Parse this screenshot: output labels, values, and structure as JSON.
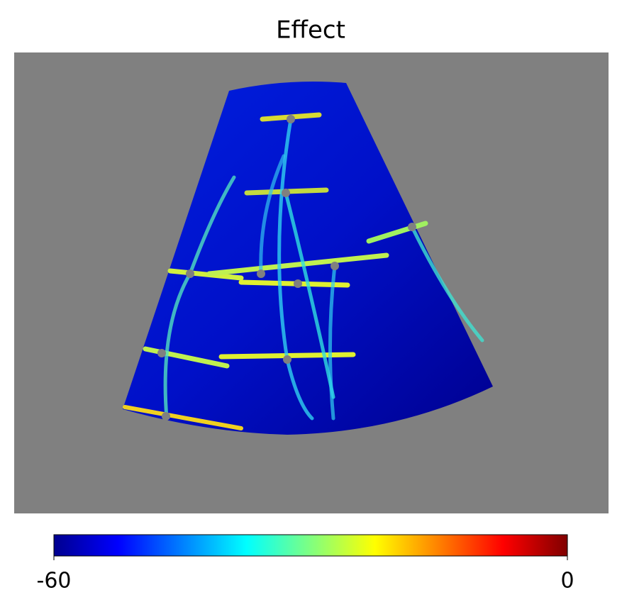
{
  "chart_data": {
    "type": "heatmap",
    "title": "Effect",
    "colormap": "jet",
    "clim": [
      -60,
      0
    ],
    "cticks": [
      -60,
      0
    ],
    "background": "#808080"
  }
}
